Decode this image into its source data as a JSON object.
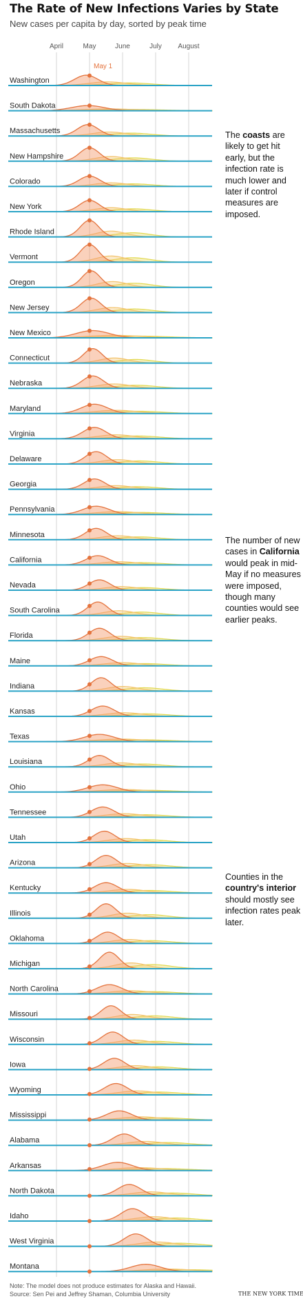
{
  "header": {
    "title": "The Rate of New Infections Varies by State",
    "subtitle": "New cases per capita by day, sorted by peak time"
  },
  "annotations": {
    "coasts": {
      "before": "The ",
      "bold": "coasts",
      "after": " are likely to get hit early, but the infection rate is much lower and later if control measures are imposed."
    },
    "california": {
      "before": "The number of new cases in ",
      "bold": "California",
      "after": " would peak in mid-May if no measures were imposed, though many counties would see earlier peaks."
    },
    "interior": {
      "before": "Counties in the ",
      "bold": "country's interior",
      "after": " should mostly see infection rates peak later."
    }
  },
  "footer": {
    "note": "Note: The model does not produce estimates for Alaska and Hawaii.",
    "source": "Source: Sen Pei and Jeffrey Shaman, Columbia University",
    "credit": "THE NEW YORK TIMES"
  },
  "colors": {
    "no_controls": "#f5996b",
    "moderate_controls": "#f3c26a",
    "strong_controls": "#e2d84e",
    "baseline": "#2aa3c6",
    "marker": "#e4733d",
    "gridline": "#d4d4d4"
  },
  "chart_data": {
    "type": "area",
    "months": [
      "April",
      "May",
      "June",
      "July",
      "August"
    ],
    "marker_label": "May 1",
    "marker_date": "May 1",
    "states": [
      "Washington",
      "South Dakota",
      "Massachusetts",
      "New Hampshire",
      "Colorado",
      "New York",
      "Rhode Island",
      "Vermont",
      "Oregon",
      "New Jersey",
      "New Mexico",
      "Connecticut",
      "Nebraska",
      "Maryland",
      "Virginia",
      "Delaware",
      "Georgia",
      "Pennsylvania",
      "Minnesota",
      "California",
      "Nevada",
      "South Carolina",
      "Florida",
      "Maine",
      "Indiana",
      "Kansas",
      "Texas",
      "Louisiana",
      "Ohio",
      "Tennessee",
      "Utah",
      "Arizona",
      "Kentucky",
      "Illinois",
      "Oklahoma",
      "Michigan",
      "North Carolina",
      "Missouri",
      "Wisconsin",
      "Iowa",
      "Wyoming",
      "Mississippi",
      "Alabama",
      "Arkansas",
      "North Dakota",
      "Idaho",
      "West Virginia",
      "Montana"
    ],
    "peak_months": [
      0.9,
      0.95,
      0.95,
      1.0,
      1.0,
      1.0,
      1.0,
      1.0,
      1.05,
      1.05,
      1.1,
      1.1,
      1.1,
      1.15,
      1.15,
      1.2,
      1.15,
      1.2,
      1.2,
      1.25,
      1.3,
      1.25,
      1.3,
      1.35,
      1.35,
      1.4,
      1.3,
      1.3,
      1.4,
      1.4,
      1.45,
      1.5,
      1.5,
      1.5,
      1.55,
      1.6,
      1.6,
      1.65,
      1.7,
      1.75,
      1.8,
      1.9,
      2.05,
      1.85,
      2.2,
      2.3,
      2.4,
      2.7
    ],
    "peak_heights": [
      0.5,
      0.25,
      0.55,
      0.65,
      0.5,
      0.55,
      0.8,
      0.85,
      0.8,
      0.7,
      0.35,
      0.7,
      0.6,
      0.45,
      0.55,
      0.6,
      0.5,
      0.4,
      0.55,
      0.45,
      0.5,
      0.65,
      0.6,
      0.45,
      0.65,
      0.5,
      0.35,
      0.55,
      0.35,
      0.5,
      0.55,
      0.6,
      0.5,
      0.7,
      0.55,
      0.8,
      0.45,
      0.65,
      0.6,
      0.55,
      0.55,
      0.45,
      0.55,
      0.4,
      0.55,
      0.6,
      0.6,
      0.35
    ],
    "peak_widths": [
      0.35,
      0.5,
      0.32,
      0.3,
      0.32,
      0.3,
      0.28,
      0.28,
      0.28,
      0.3,
      0.5,
      0.28,
      0.32,
      0.4,
      0.35,
      0.32,
      0.32,
      0.4,
      0.32,
      0.35,
      0.32,
      0.3,
      0.32,
      0.35,
      0.3,
      0.35,
      0.45,
      0.32,
      0.45,
      0.35,
      0.32,
      0.32,
      0.35,
      0.3,
      0.32,
      0.3,
      0.38,
      0.3,
      0.32,
      0.32,
      0.35,
      0.38,
      0.35,
      0.45,
      0.35,
      0.35,
      0.35,
      0.45
    ],
    "secondary_curves": [
      {
        "name": "",
        "color": "#f3c26a",
        "peak_shift": 0.65,
        "height_factor": 0.35,
        "width_factor": 1.6
      },
      {
        "name": "",
        "color": "#e2d84e",
        "peak_shift": 1.3,
        "height_factor": 0.25,
        "width_factor": 1.9
      }
    ]
  }
}
